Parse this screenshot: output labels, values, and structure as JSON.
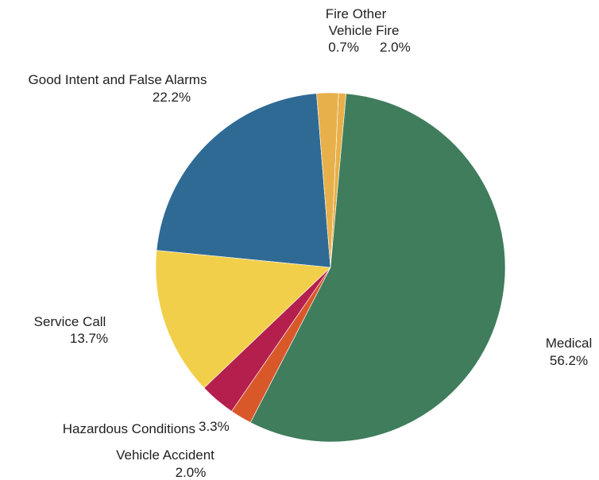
{
  "chart_data": {
    "type": "pie",
    "title": "",
    "slices": [
      {
        "label": "Fire Other",
        "value": 0.7,
        "value_text": "0.7%",
        "color": "#e8b04a"
      },
      {
        "label": "Medical",
        "value": 56.2,
        "value_text": "56.2%",
        "color": "#3f7d5c"
      },
      {
        "label": "Vehicle Accident",
        "value": 2.0,
        "value_text": "2.0%",
        "color": "#d9582a"
      },
      {
        "label": "Hazardous Conditions",
        "value": 3.3,
        "value_text": "3.3%",
        "color": "#b51f4e"
      },
      {
        "label": "Service Call",
        "value": 13.7,
        "value_text": "13.7%",
        "color": "#f2cf4a"
      },
      {
        "label": "Good Intent and False Alarms",
        "value": 22.2,
        "value_text": "22.2%",
        "color": "#2f6a95"
      },
      {
        "label": "Vehicle Fire",
        "value": 2.0,
        "value_text": "2.0%",
        "color": "#e8b04a"
      }
    ],
    "legend": "none (direct labels)"
  }
}
